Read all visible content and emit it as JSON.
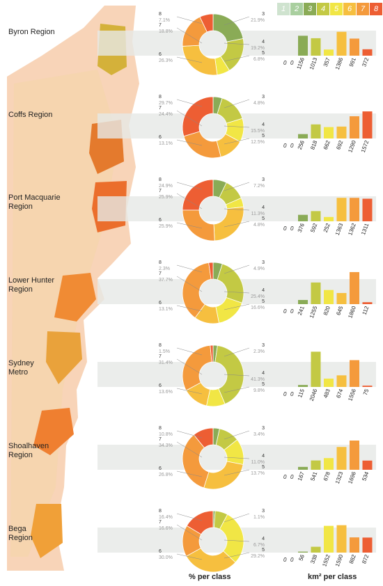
{
  "class_legend": [
    {
      "label": "1",
      "color": "#cfe3cf"
    },
    {
      "label": "2",
      "color": "#a9cf9f"
    },
    {
      "label": "3",
      "color": "#8aab56"
    },
    {
      "label": "4",
      "color": "#c3c944"
    },
    {
      "label": "5",
      "color": "#f1e645"
    },
    {
      "label": "6",
      "color": "#f6bf3f"
    },
    {
      "label": "7",
      "color": "#f49a3c"
    },
    {
      "label": "8",
      "color": "#ed5e33"
    }
  ],
  "footer": {
    "pie_label": "% per class",
    "bar_label": "km² per class"
  },
  "chart_data": [
    {
      "type": "pie",
      "region": "Byron Region",
      "classes": [
        "3",
        "4",
        "5",
        "6",
        "7",
        "8"
      ],
      "values": [
        21.9,
        19.2,
        6.8,
        26.3,
        18.8,
        7.1
      ],
      "labels": [
        "21.9%",
        "19.2%",
        "6.8%",
        "26.3%",
        "18.8%",
        "7.1%"
      ],
      "bar_values": [
        1156,
        1013,
        357,
        1386,
        991,
        372
      ],
      "bar_zero_labels": [
        "0",
        "0"
      ]
    },
    {
      "type": "pie",
      "region": "Coffs Region",
      "classes": [
        "3",
        "4",
        "5",
        "6",
        "7",
        "8"
      ],
      "values": [
        4.8,
        15.5,
        12.5,
        13.1,
        24.4,
        29.7
      ],
      "labels": [
        "4.8%",
        "15.5%",
        "12.5%",
        "13.1%",
        "24.4%",
        "29.7%"
      ],
      "bar_values": [
        256,
        818,
        662,
        692,
        1290,
        1572
      ],
      "bar_zero_labels": [
        "0",
        "0"
      ]
    },
    {
      "type": "pie",
      "region": "Port Macquarie\nRegion",
      "classes": [
        "3",
        "4",
        "5",
        "6",
        "7",
        "8"
      ],
      "values": [
        7.2,
        11.3,
        4.8,
        25.9,
        25.9,
        24.9
      ],
      "labels": [
        "7.2%",
        "11.3%",
        "4.8%",
        "25.9%",
        "25.9%",
        "24.9%"
      ],
      "bar_values": [
        376,
        592,
        252,
        1363,
        1362,
        1311
      ],
      "bar_zero_labels": [
        "0",
        "0"
      ]
    },
    {
      "type": "pie",
      "region": "Lower Hunter\nRegion",
      "classes": [
        "3",
        "4",
        "5",
        "6",
        "7",
        "8"
      ],
      "values": [
        4.9,
        25.4,
        16.6,
        13.1,
        37.7,
        2.3
      ],
      "labels": [
        "4.9%",
        "25.4%",
        "16.6%",
        "13.1%",
        "37.7%",
        "2.3%"
      ],
      "bar_values": [
        241,
        1255,
        820,
        645,
        1860,
        112
      ],
      "bar_zero_labels": [
        "0",
        "0"
      ]
    },
    {
      "type": "pie",
      "region": "Sydney\nMetro",
      "classes": [
        "3",
        "4",
        "5",
        "6",
        "7",
        "8"
      ],
      "values": [
        2.3,
        41.3,
        9.8,
        13.6,
        31.4,
        1.5
      ],
      "labels": [
        "2.3%",
        "41.3%",
        "9.8%",
        "13.6%",
        "31.4%",
        "1.5%"
      ],
      "bar_values": [
        115,
        2046,
        483,
        674,
        1556,
        75
      ],
      "bar_zero_labels": [
        "0",
        "0"
      ]
    },
    {
      "type": "pie",
      "region": "Shoalhaven\nRegion",
      "classes": [
        "3",
        "4",
        "5",
        "6",
        "7",
        "8"
      ],
      "values": [
        3.4,
        11.0,
        13.7,
        26.8,
        34.3,
        10.8
      ],
      "labels": [
        "3.4%",
        "11.0%",
        "13.7%",
        "26.8%",
        "34.3%",
        "10.8%"
      ],
      "bar_values": [
        167,
        541,
        678,
        1323,
        1696,
        534
      ],
      "bar_zero_labels": [
        "0",
        "0"
      ]
    },
    {
      "type": "pie",
      "region": "Bega\nRegion",
      "classes": [
        "3",
        "4",
        "5",
        "6",
        "7",
        "8"
      ],
      "values": [
        1.1,
        6.7,
        29.2,
        30.0,
        16.6,
        16.4
      ],
      "labels": [
        "1.1%",
        "6.7%",
        "29.2%",
        "30.0%",
        "16.6%",
        "16.4%"
      ],
      "bar_values": [
        56,
        338,
        1552,
        1590,
        882,
        872
      ],
      "bar_zero_labels": [
        "0",
        "0"
      ]
    }
  ]
}
